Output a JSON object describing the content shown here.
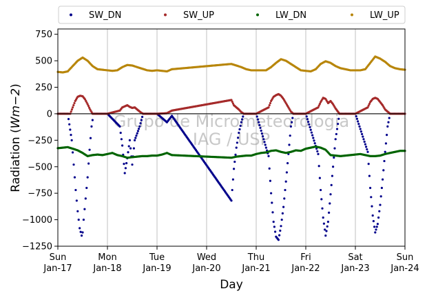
{
  "chart_data": {
    "type": "scatter",
    "title": "",
    "xlabel": "Day",
    "ylabel": "Radiation",
    "ylabel_unit": "Wm−2",
    "ylim": [
      -1250,
      800
    ],
    "yticks": [
      750,
      500,
      250,
      0,
      -250,
      -500,
      -750,
      -1000,
      -1250
    ],
    "ytick_labels": [
      "750",
      "500",
      "250",
      "0",
      "−250",
      "−500",
      "−750",
      "−1000",
      "−1250"
    ],
    "xlim": [
      0,
      7
    ],
    "xticks": [
      {
        "day": 0,
        "weekday": "Sun",
        "date": "Jan-17"
      },
      {
        "day": 1,
        "weekday": "Mon",
        "date": "Jan-18"
      },
      {
        "day": 2,
        "weekday": "Tue",
        "date": "Jan-19"
      },
      {
        "day": 3,
        "weekday": "Wed",
        "date": "Jan-20"
      },
      {
        "day": 4,
        "weekday": "Thu",
        "date": "Jan-21"
      },
      {
        "day": 5,
        "weekday": "Fri",
        "date": "Jan-22"
      },
      {
        "day": 6,
        "weekday": "Sat",
        "date": "Jan-23"
      },
      {
        "day": 7,
        "weekday": "Sun",
        "date": "Jan-24"
      }
    ],
    "grid": "vertical",
    "legend_position": "top",
    "watermark": [
      "Grupo de Micrometeorologia",
      "IAG / USP"
    ],
    "data_gap_days": [
      2.33,
      3.5
    ],
    "series": [
      {
        "name": "SW_DN",
        "color": "#00008b",
        "points": [
          [
            0.0,
            0
          ],
          [
            0.2,
            0
          ],
          [
            0.28,
            -250
          ],
          [
            0.32,
            -480
          ],
          [
            0.36,
            -720
          ],
          [
            0.4,
            -920
          ],
          [
            0.44,
            -1080
          ],
          [
            0.48,
            -1150
          ],
          [
            0.5,
            -1120
          ],
          [
            0.52,
            -1000
          ],
          [
            0.56,
            -800
          ],
          [
            0.6,
            -600
          ],
          [
            0.64,
            -340
          ],
          [
            0.68,
            -120
          ],
          [
            0.72,
            0
          ],
          [
            1.0,
            0
          ],
          [
            1.25,
            -120
          ],
          [
            1.3,
            -300
          ],
          [
            1.35,
            -560
          ],
          [
            1.4,
            -420
          ],
          [
            1.45,
            -250
          ],
          [
            1.5,
            -480
          ],
          [
            1.55,
            -250
          ],
          [
            1.65,
            -120
          ],
          [
            1.72,
            0
          ],
          [
            2.0,
            0
          ],
          [
            2.2,
            -80
          ],
          [
            2.3,
            -20
          ],
          [
            3.5,
            -820
          ],
          [
            3.55,
            -520
          ],
          [
            3.6,
            -320
          ],
          [
            3.65,
            -180
          ],
          [
            3.7,
            -80
          ],
          [
            3.75,
            0
          ],
          [
            4.0,
            0
          ],
          [
            4.25,
            -400
          ],
          [
            4.3,
            -750
          ],
          [
            4.35,
            -1020
          ],
          [
            4.4,
            -1160
          ],
          [
            4.45,
            -1190
          ],
          [
            4.5,
            -1060
          ],
          [
            4.55,
            -880
          ],
          [
            4.6,
            -640
          ],
          [
            4.65,
            -380
          ],
          [
            4.7,
            -120
          ],
          [
            4.75,
            0
          ],
          [
            5.0,
            0
          ],
          [
            5.25,
            -380
          ],
          [
            5.3,
            -720
          ],
          [
            5.35,
            -980
          ],
          [
            5.4,
            -1150
          ],
          [
            5.45,
            -1020
          ],
          [
            5.5,
            -760
          ],
          [
            5.55,
            -500
          ],
          [
            5.6,
            -240
          ],
          [
            5.68,
            0
          ],
          [
            6.0,
            0
          ],
          [
            6.25,
            -360
          ],
          [
            6.3,
            -700
          ],
          [
            6.35,
            -960
          ],
          [
            6.4,
            -1120
          ],
          [
            6.45,
            -1040
          ],
          [
            6.5,
            -860
          ],
          [
            6.55,
            -620
          ],
          [
            6.6,
            -360
          ],
          [
            6.65,
            -120
          ],
          [
            6.7,
            0
          ],
          [
            7.0,
            0
          ]
        ]
      },
      {
        "name": "SW_UP",
        "color": "#a52a2a",
        "points": [
          [
            0.0,
            0
          ],
          [
            0.25,
            0
          ],
          [
            0.3,
            60
          ],
          [
            0.35,
            120
          ],
          [
            0.4,
            160
          ],
          [
            0.45,
            170
          ],
          [
            0.5,
            165
          ],
          [
            0.55,
            135
          ],
          [
            0.6,
            90
          ],
          [
            0.65,
            40
          ],
          [
            0.7,
            0
          ],
          [
            1.0,
            0
          ],
          [
            1.25,
            30
          ],
          [
            1.3,
            60
          ],
          [
            1.35,
            70
          ],
          [
            1.4,
            80
          ],
          [
            1.45,
            65
          ],
          [
            1.5,
            55
          ],
          [
            1.55,
            60
          ],
          [
            1.6,
            40
          ],
          [
            1.68,
            10
          ],
          [
            1.72,
            0
          ],
          [
            2.0,
            0
          ],
          [
            2.2,
            5
          ],
          [
            2.3,
            30
          ],
          [
            3.5,
            130
          ],
          [
            3.55,
            80
          ],
          [
            3.6,
            60
          ],
          [
            3.65,
            40
          ],
          [
            3.7,
            15
          ],
          [
            3.75,
            0
          ],
          [
            4.0,
            0
          ],
          [
            4.25,
            60
          ],
          [
            4.3,
            120
          ],
          [
            4.35,
            160
          ],
          [
            4.4,
            175
          ],
          [
            4.45,
            185
          ],
          [
            4.5,
            170
          ],
          [
            4.55,
            140
          ],
          [
            4.6,
            100
          ],
          [
            4.65,
            60
          ],
          [
            4.7,
            20
          ],
          [
            4.75,
            0
          ],
          [
            5.0,
            0
          ],
          [
            5.25,
            60
          ],
          [
            5.3,
            110
          ],
          [
            5.35,
            150
          ],
          [
            5.4,
            140
          ],
          [
            5.45,
            100
          ],
          [
            5.5,
            120
          ],
          [
            5.55,
            90
          ],
          [
            5.6,
            50
          ],
          [
            5.68,
            0
          ],
          [
            6.0,
            0
          ],
          [
            6.25,
            60
          ],
          [
            6.3,
            110
          ],
          [
            6.35,
            140
          ],
          [
            6.4,
            150
          ],
          [
            6.45,
            140
          ],
          [
            6.5,
            110
          ],
          [
            6.55,
            80
          ],
          [
            6.6,
            40
          ],
          [
            6.7,
            0
          ],
          [
            7.0,
            0
          ]
        ]
      },
      {
        "name": "LW_DN",
        "color": "#006400",
        "points": [
          [
            0.0,
            -325
          ],
          [
            0.1,
            -320
          ],
          [
            0.2,
            -315
          ],
          [
            0.3,
            -330
          ],
          [
            0.4,
            -345
          ],
          [
            0.5,
            -370
          ],
          [
            0.6,
            -400
          ],
          [
            0.7,
            -390
          ],
          [
            0.8,
            -385
          ],
          [
            0.9,
            -390
          ],
          [
            1.0,
            -380
          ],
          [
            1.1,
            -370
          ],
          [
            1.2,
            -390
          ],
          [
            1.3,
            -400
          ],
          [
            1.4,
            -415
          ],
          [
            1.5,
            -410
          ],
          [
            1.6,
            -405
          ],
          [
            1.7,
            -400
          ],
          [
            1.8,
            -400
          ],
          [
            1.9,
            -395
          ],
          [
            2.0,
            -395
          ],
          [
            2.1,
            -385
          ],
          [
            2.2,
            -370
          ],
          [
            2.3,
            -390
          ],
          [
            3.5,
            -415
          ],
          [
            3.6,
            -405
          ],
          [
            3.7,
            -400
          ],
          [
            3.8,
            -395
          ],
          [
            3.9,
            -395
          ],
          [
            4.0,
            -380
          ],
          [
            4.1,
            -370
          ],
          [
            4.2,
            -365
          ],
          [
            4.3,
            -350
          ],
          [
            4.4,
            -345
          ],
          [
            4.5,
            -360
          ],
          [
            4.6,
            -370
          ],
          [
            4.7,
            -360
          ],
          [
            4.8,
            -345
          ],
          [
            4.9,
            -350
          ],
          [
            5.0,
            -330
          ],
          [
            5.1,
            -320
          ],
          [
            5.2,
            -310
          ],
          [
            5.3,
            -320
          ],
          [
            5.4,
            -340
          ],
          [
            5.5,
            -390
          ],
          [
            5.6,
            -395
          ],
          [
            5.7,
            -400
          ],
          [
            5.8,
            -395
          ],
          [
            5.9,
            -390
          ],
          [
            6.0,
            -385
          ],
          [
            6.1,
            -380
          ],
          [
            6.2,
            -390
          ],
          [
            6.3,
            -400
          ],
          [
            6.4,
            -400
          ],
          [
            6.5,
            -395
          ],
          [
            6.6,
            -380
          ],
          [
            6.7,
            -370
          ],
          [
            6.8,
            -360
          ],
          [
            6.9,
            -350
          ],
          [
            7.0,
            -350
          ]
        ]
      },
      {
        "name": "LW_UP",
        "color": "#b8860b",
        "points": [
          [
            0.0,
            395
          ],
          [
            0.1,
            390
          ],
          [
            0.2,
            400
          ],
          [
            0.3,
            450
          ],
          [
            0.4,
            500
          ],
          [
            0.5,
            530
          ],
          [
            0.6,
            500
          ],
          [
            0.7,
            450
          ],
          [
            0.8,
            420
          ],
          [
            0.9,
            415
          ],
          [
            1.0,
            410
          ],
          [
            1.1,
            405
          ],
          [
            1.2,
            410
          ],
          [
            1.3,
            440
          ],
          [
            1.4,
            460
          ],
          [
            1.5,
            455
          ],
          [
            1.6,
            440
          ],
          [
            1.7,
            425
          ],
          [
            1.8,
            410
          ],
          [
            1.9,
            405
          ],
          [
            2.0,
            410
          ],
          [
            2.1,
            405
          ],
          [
            2.2,
            400
          ],
          [
            2.3,
            420
          ],
          [
            3.5,
            470
          ],
          [
            3.6,
            455
          ],
          [
            3.7,
            440
          ],
          [
            3.8,
            420
          ],
          [
            3.9,
            410
          ],
          [
            4.0,
            410
          ],
          [
            4.1,
            410
          ],
          [
            4.2,
            410
          ],
          [
            4.3,
            440
          ],
          [
            4.4,
            480
          ],
          [
            4.5,
            515
          ],
          [
            4.6,
            500
          ],
          [
            4.7,
            470
          ],
          [
            4.8,
            440
          ],
          [
            4.9,
            410
          ],
          [
            5.0,
            405
          ],
          [
            5.1,
            400
          ],
          [
            5.2,
            420
          ],
          [
            5.3,
            470
          ],
          [
            5.4,
            495
          ],
          [
            5.5,
            480
          ],
          [
            5.6,
            450
          ],
          [
            5.7,
            430
          ],
          [
            5.8,
            420
          ],
          [
            5.9,
            410
          ],
          [
            6.0,
            410
          ],
          [
            6.1,
            410
          ],
          [
            6.2,
            420
          ],
          [
            6.3,
            480
          ],
          [
            6.4,
            540
          ],
          [
            6.5,
            520
          ],
          [
            6.6,
            490
          ],
          [
            6.7,
            450
          ],
          [
            6.8,
            430
          ],
          [
            6.9,
            420
          ],
          [
            7.0,
            415
          ]
        ]
      }
    ]
  }
}
